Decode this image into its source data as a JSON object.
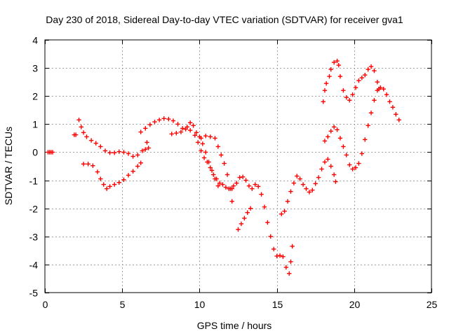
{
  "chart_data": {
    "type": "scatter",
    "title": "Day 230 of 2018, Sidereal Day-to-day VTEC variation (SDTVAR) for receiver gva1",
    "xlabel": "GPS time / hours",
    "ylabel": "SDTVAR / TECUs",
    "xlim": [
      0,
      25
    ],
    "ylim": [
      -5,
      4
    ],
    "x_ticks": [
      "0",
      "5",
      "10",
      "15",
      "20",
      "25"
    ],
    "y_ticks": [
      "-5",
      "-4",
      "-3",
      "-2",
      "-1",
      "0",
      "1",
      "2",
      "3",
      "4"
    ],
    "grid": true,
    "legend": "none",
    "marker": "plus",
    "color": "#ff0000",
    "series": [
      {
        "points": [
          [
            0.2,
            0.0
          ],
          [
            0.3,
            0.0
          ],
          [
            0.4,
            0.0
          ],
          [
            0.5,
            0.0
          ],
          [
            1.9,
            0.62
          ],
          [
            2.0,
            0.62
          ],
          [
            2.2,
            1.15
          ],
          [
            2.35,
            0.9
          ],
          [
            2.5,
            0.7
          ],
          [
            2.7,
            0.55
          ],
          [
            3.0,
            0.42
          ],
          [
            3.3,
            0.32
          ],
          [
            3.6,
            0.2
          ],
          [
            3.9,
            0.05
          ],
          [
            4.2,
            -0.02
          ],
          [
            4.5,
            -0.02
          ],
          [
            4.8,
            0.02
          ],
          [
            5.1,
            0.0
          ],
          [
            5.4,
            -0.05
          ],
          [
            5.7,
            -0.15
          ],
          [
            6.0,
            -0.1
          ],
          [
            6.3,
            0.05
          ],
          [
            6.5,
            0.1
          ],
          [
            6.6,
            0.35
          ],
          [
            6.7,
            0.15
          ],
          [
            2.5,
            -0.42
          ],
          [
            2.8,
            -0.42
          ],
          [
            3.1,
            -0.48
          ],
          [
            3.4,
            -0.7
          ],
          [
            3.6,
            -0.95
          ],
          [
            3.8,
            -1.15
          ],
          [
            4.0,
            -1.3
          ],
          [
            4.2,
            -1.22
          ],
          [
            4.5,
            -1.15
          ],
          [
            4.8,
            -1.08
          ],
          [
            5.1,
            -0.98
          ],
          [
            5.4,
            -0.82
          ],
          [
            5.7,
            -0.68
          ],
          [
            6.0,
            -0.5
          ],
          [
            6.2,
            -0.38
          ],
          [
            6.2,
            0.72
          ],
          [
            6.5,
            0.85
          ],
          [
            6.8,
            0.98
          ],
          [
            7.1,
            1.08
          ],
          [
            7.4,
            1.15
          ],
          [
            7.7,
            1.2
          ],
          [
            8.0,
            1.18
          ],
          [
            8.3,
            1.12
          ],
          [
            8.6,
            1.0
          ],
          [
            8.9,
            0.85
          ],
          [
            9.2,
            0.9
          ],
          [
            9.4,
            1.05
          ],
          [
            9.6,
            0.95
          ],
          [
            9.8,
            0.7
          ],
          [
            10.0,
            0.55
          ],
          [
            10.2,
            0.3
          ],
          [
            10.4,
            0.0
          ],
          [
            10.6,
            -0.35
          ],
          [
            10.8,
            -0.65
          ],
          [
            11.0,
            -0.95
          ],
          [
            11.2,
            -1.2
          ],
          [
            8.2,
            0.65
          ],
          [
            8.5,
            0.68
          ],
          [
            8.8,
            0.72
          ],
          [
            9.1,
            0.82
          ],
          [
            9.4,
            0.78
          ],
          [
            9.7,
            0.6
          ],
          [
            9.9,
            0.35
          ],
          [
            10.1,
            0.05
          ],
          [
            10.3,
            -0.2
          ],
          [
            10.5,
            -0.35
          ],
          [
            10.7,
            -0.55
          ],
          [
            10.9,
            -0.8
          ],
          [
            11.1,
            -0.95
          ],
          [
            11.3,
            -1.1
          ],
          [
            11.5,
            -1.15
          ],
          [
            11.7,
            -1.25
          ],
          [
            11.9,
            -1.3
          ],
          [
            12.1,
            -1.3
          ],
          [
            10.1,
            0.5
          ],
          [
            10.4,
            0.58
          ],
          [
            10.7,
            0.55
          ],
          [
            11.0,
            0.5
          ],
          [
            11.2,
            0.2
          ],
          [
            11.4,
            -0.1
          ],
          [
            11.6,
            -0.4
          ],
          [
            11.8,
            -0.8
          ],
          [
            12.0,
            -1.3
          ],
          [
            12.1,
            -1.75
          ],
          [
            12.2,
            -1.2
          ],
          [
            12.4,
            -1.1
          ],
          [
            12.6,
            -0.9
          ],
          [
            12.8,
            -0.88
          ],
          [
            13.0,
            -1.0
          ],
          [
            13.2,
            -1.2
          ],
          [
            13.4,
            -1.3
          ],
          [
            13.6,
            -1.15
          ],
          [
            13.8,
            -1.22
          ],
          [
            14.0,
            -1.5
          ],
          [
            14.2,
            -1.95
          ],
          [
            14.4,
            -2.5
          ],
          [
            14.6,
            -3.0
          ],
          [
            14.8,
            -3.45
          ],
          [
            15.0,
            -3.7
          ],
          [
            15.2,
            -3.68
          ],
          [
            15.4,
            -3.72
          ],
          [
            15.6,
            -4.1
          ],
          [
            15.8,
            -4.32
          ],
          [
            15.9,
            -3.9
          ],
          [
            16.0,
            -3.35
          ],
          [
            12.5,
            -2.75
          ],
          [
            12.7,
            -2.55
          ],
          [
            12.9,
            -2.35
          ],
          [
            13.1,
            -2.15
          ],
          [
            13.3,
            -2.0
          ],
          [
            15.3,
            -2.2
          ],
          [
            15.5,
            -2.1
          ],
          [
            15.7,
            -1.75
          ],
          [
            15.9,
            -1.4
          ],
          [
            16.1,
            -1.1
          ],
          [
            16.3,
            -0.85
          ],
          [
            16.5,
            -0.95
          ],
          [
            16.7,
            -1.15
          ],
          [
            16.9,
            -1.3
          ],
          [
            17.1,
            -1.42
          ],
          [
            17.3,
            -1.35
          ],
          [
            17.5,
            -1.12
          ],
          [
            17.7,
            -0.9
          ],
          [
            17.9,
            -0.6
          ],
          [
            18.1,
            -0.35
          ],
          [
            18.3,
            -0.25
          ],
          [
            18.5,
            -0.5
          ],
          [
            18.7,
            -0.8
          ],
          [
            18.8,
            -1.05
          ],
          [
            18.1,
            0.4
          ],
          [
            18.3,
            0.55
          ],
          [
            18.5,
            0.75
          ],
          [
            18.7,
            0.9
          ],
          [
            18.9,
            0.8
          ],
          [
            19.1,
            0.5
          ],
          [
            19.3,
            0.2
          ],
          [
            19.5,
            -0.1
          ],
          [
            19.7,
            -0.45
          ],
          [
            19.9,
            -0.6
          ],
          [
            20.1,
            -0.55
          ],
          [
            20.3,
            -0.4
          ],
          [
            20.5,
            -0.05
          ],
          [
            20.7,
            0.45
          ],
          [
            20.9,
            0.95
          ],
          [
            21.1,
            1.4
          ],
          [
            21.3,
            1.85
          ],
          [
            21.5,
            2.2
          ],
          [
            21.7,
            2.3
          ],
          [
            21.9,
            2.25
          ],
          [
            22.1,
            2.05
          ],
          [
            22.3,
            1.8
          ],
          [
            22.5,
            1.6
          ],
          [
            22.7,
            1.35
          ],
          [
            22.9,
            1.15
          ],
          [
            18.0,
            1.8
          ],
          [
            18.1,
            2.2
          ],
          [
            18.2,
            2.45
          ],
          [
            18.4,
            2.7
          ],
          [
            18.5,
            2.95
          ],
          [
            18.7,
            3.2
          ],
          [
            18.9,
            3.25
          ],
          [
            19.0,
            3.1
          ],
          [
            19.1,
            2.7
          ],
          [
            19.3,
            2.2
          ],
          [
            19.5,
            1.95
          ],
          [
            19.7,
            1.85
          ],
          [
            19.9,
            2.05
          ],
          [
            20.1,
            2.3
          ],
          [
            20.3,
            2.55
          ],
          [
            20.5,
            2.65
          ],
          [
            20.7,
            2.75
          ],
          [
            20.9,
            2.95
          ],
          [
            21.1,
            3.05
          ],
          [
            21.3,
            2.9
          ],
          [
            21.5,
            2.5
          ],
          [
            21.6,
            2.25
          ]
        ]
      }
    ]
  }
}
